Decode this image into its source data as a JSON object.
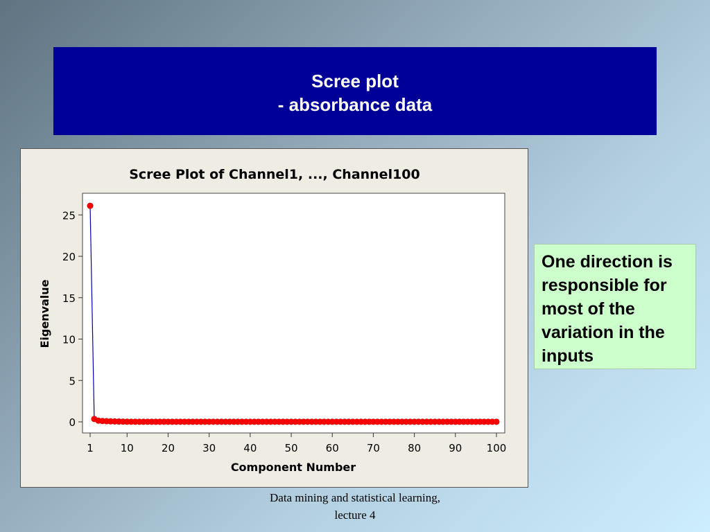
{
  "slide": {
    "title_line1": "Scree plot",
    "title_line2": "- absorbance data",
    "note": "One direction is responsible for most of the variation in the inputs",
    "footer_line1": "Data mining and statistical learning,",
    "footer_line2": "lecture 4"
  },
  "colors": {
    "title_bg": "#000099",
    "note_bg": "#ccffcc",
    "series_line": "#0000aa",
    "series_point": "#ff0000"
  },
  "chart_data": {
    "type": "line",
    "title": "Scree Plot of Channel1, ..., Channel100",
    "xlabel": "Component Number",
    "ylabel": "Eigenvalue",
    "xticks": [
      1,
      10,
      20,
      30,
      40,
      50,
      60,
      70,
      80,
      90,
      100
    ],
    "yticks": [
      0,
      5,
      10,
      15,
      20,
      25
    ],
    "xlim": [
      1,
      100
    ],
    "ylim": [
      0,
      27
    ],
    "grid": false,
    "series": [
      {
        "x_start": 1,
        "x_end": 100,
        "values": [
          26.1,
          0.35,
          0.15,
          0.1,
          0.08,
          0.06,
          0.05,
          0.04,
          0.03,
          0.02
        ],
        "tail_value": 0.01
      }
    ]
  }
}
